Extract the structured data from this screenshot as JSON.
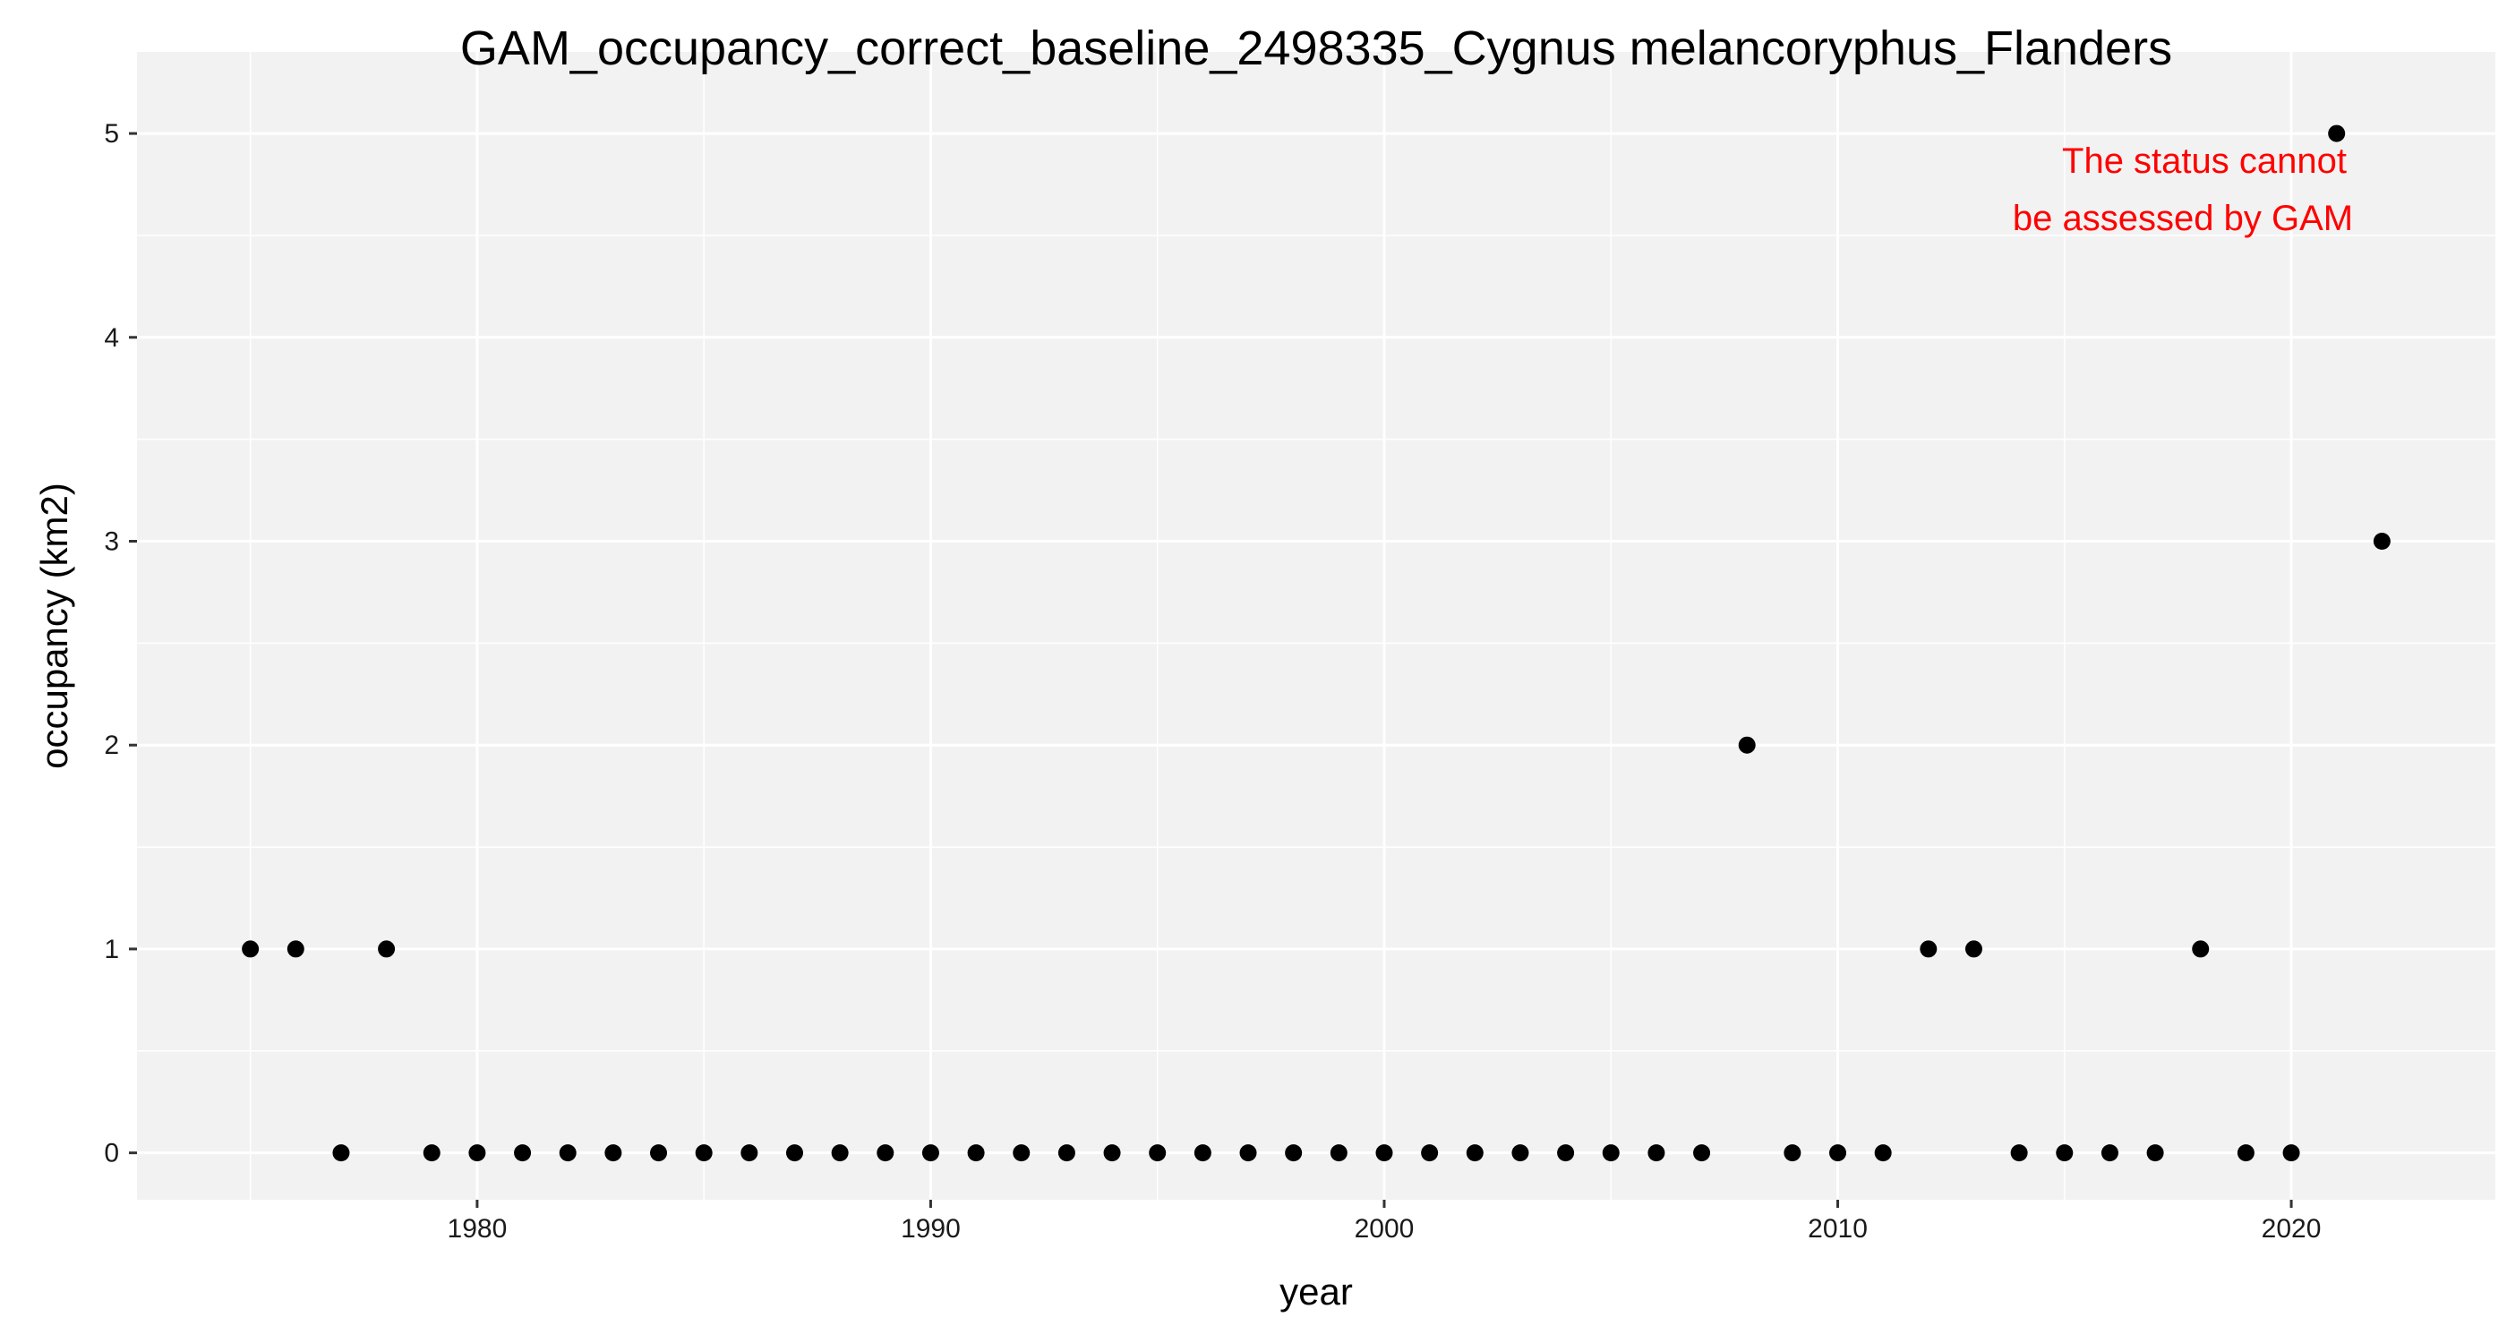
{
  "chart_data": {
    "type": "scatter",
    "title": "GAM_occupancy_correct_baseline_2498335_Cygnus melancoryphus_Flanders",
    "xlabel": "year",
    "ylabel": "occupancy (km2)",
    "xlim": [
      1972.5,
      2024.5
    ],
    "ylim": [
      -0.23,
      5.4
    ],
    "x_ticks": [
      1980,
      1990,
      2000,
      2010,
      2020
    ],
    "x_tick_labels": [
      "1980",
      "1990",
      "2000",
      "2010",
      "2020"
    ],
    "y_ticks": [
      0,
      1,
      2,
      3,
      4,
      5
    ],
    "y_tick_labels": [
      "0",
      "1",
      "2",
      "3",
      "4",
      "5"
    ],
    "grid": true,
    "legend": "none",
    "annotation": {
      "line1": "The status cannot",
      "line2": "be assessed by GAM",
      "color": "#ff0000"
    },
    "colors": {
      "panel": "#f2f2f2",
      "grid": "#ffffff",
      "point": "#000000"
    },
    "series": [
      {
        "x": [
          1975,
          1976,
          1977,
          1978,
          1979,
          1980,
          1981,
          1982,
          1983,
          1984,
          1985,
          1986,
          1987,
          1988,
          1989,
          1990,
          1991,
          1992,
          1993,
          1994,
          1995,
          1996,
          1997,
          1998,
          1999,
          2000,
          2001,
          2002,
          2003,
          2004,
          2005,
          2006,
          2007,
          2008,
          2009,
          2010,
          2011,
          2012,
          2013,
          2014,
          2015,
          2016,
          2017,
          2018,
          2019,
          2020,
          2021,
          2022
        ],
        "y": [
          1,
          1,
          0,
          1,
          0,
          0,
          0,
          0,
          0,
          0,
          0,
          0,
          0,
          0,
          0,
          0,
          0,
          0,
          0,
          0,
          0,
          0,
          0,
          0,
          0,
          0,
          0,
          0,
          0,
          0,
          0,
          0,
          0,
          2,
          0,
          0,
          0,
          1,
          1,
          0,
          0,
          0,
          0,
          1,
          0,
          0,
          5,
          3
        ]
      }
    ]
  }
}
